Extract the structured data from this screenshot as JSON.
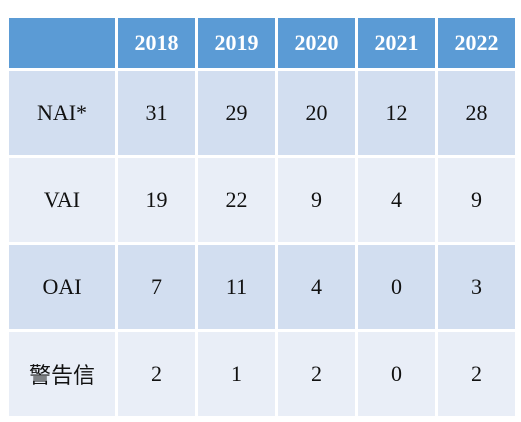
{
  "table": {
    "corner": "",
    "headers": [
      "2018",
      "2019",
      "2020",
      "2021",
      "2022"
    ],
    "rows": [
      {
        "label": "NAI*",
        "values": [
          "31",
          "29",
          "20",
          "12",
          "28"
        ]
      },
      {
        "label": "VAI",
        "values": [
          "19",
          "22",
          "9",
          "4",
          "9"
        ]
      },
      {
        "label": "OAI",
        "values": [
          "7",
          "11",
          "4",
          "0",
          "3"
        ]
      },
      {
        "label": "警告信",
        "values": [
          "2",
          "1",
          "2",
          "0",
          "2"
        ]
      }
    ]
  },
  "colors": {
    "header_bg": "#5b9bd5",
    "row_odd_bg": "#d2def0",
    "row_even_bg": "#e9eef7"
  }
}
